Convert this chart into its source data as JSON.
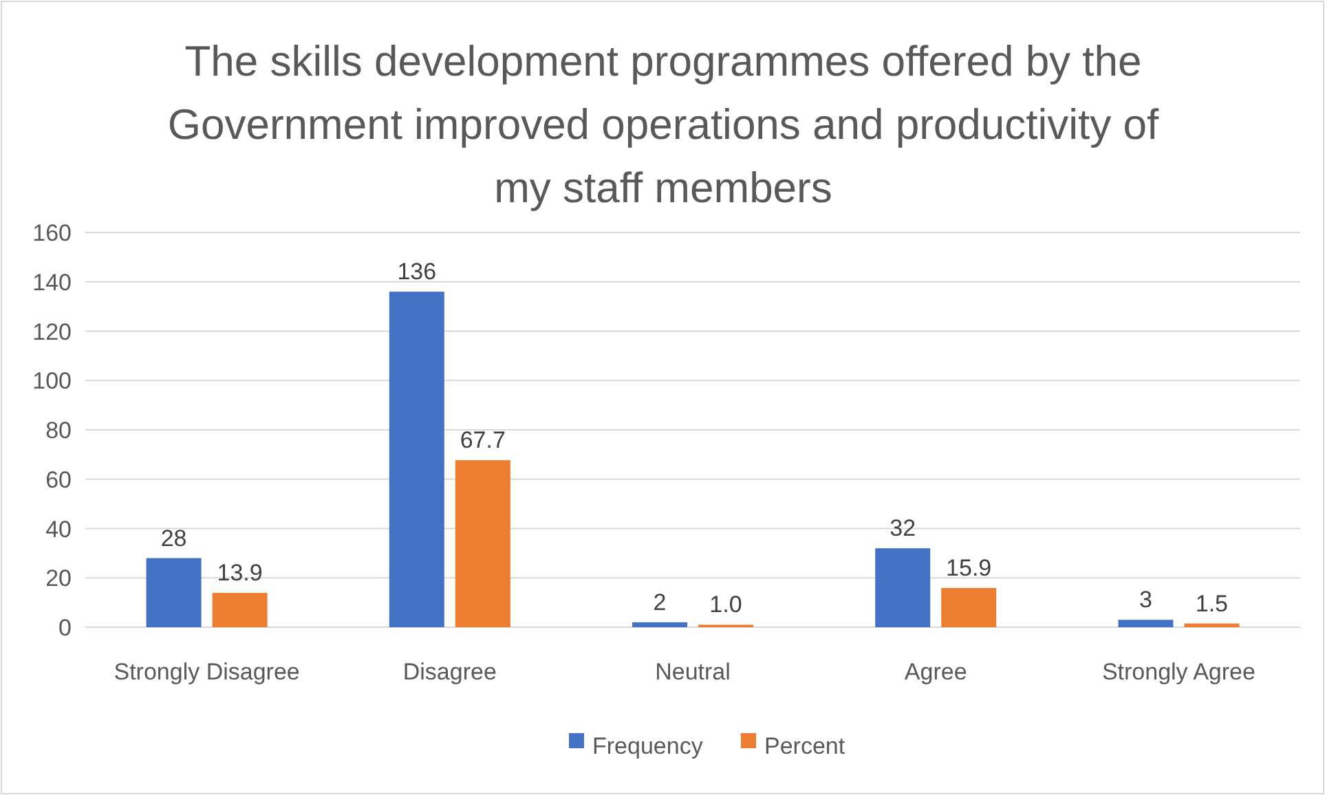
{
  "chart_data": {
    "type": "bar",
    "title": "The skills development programmes offered by the Government improved operations and productivity of my staff members",
    "categories": [
      "Strongly Disagree",
      "Disagree",
      "Neutral",
      "Agree",
      "Strongly Agree"
    ],
    "series": [
      {
        "name": "Frequency",
        "color": "#4472c4",
        "values": [
          28,
          136,
          2,
          32,
          3
        ],
        "value_labels": [
          "28",
          "136",
          "2",
          "32",
          "3"
        ]
      },
      {
        "name": "Percent",
        "color": "#ed7d31",
        "values": [
          13.9,
          67.7,
          1.0,
          15.9,
          1.5
        ],
        "value_labels": [
          "13.9",
          "67.7",
          "1.0",
          "15.9",
          "1.5"
        ]
      }
    ],
    "ylim": [
      0,
      160
    ],
    "yticks": [
      0,
      20,
      40,
      60,
      80,
      100,
      120,
      140,
      160
    ],
    "grid": "y",
    "legend": "bottom"
  }
}
